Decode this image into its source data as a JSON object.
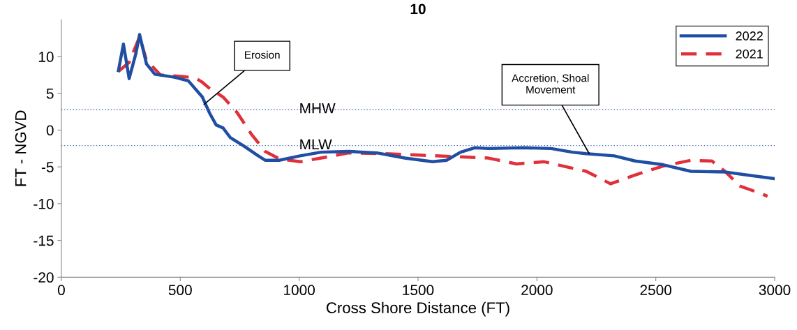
{
  "chart_data": {
    "type": "line",
    "title": "10",
    "xlabel": "Cross Shore Distance (FT)",
    "ylabel": "FT - NGVD",
    "xlim": [
      0,
      3000
    ],
    "xticks": [
      0,
      500,
      1000,
      1500,
      2000,
      2500,
      3000
    ],
    "ylim": [
      -20,
      15
    ],
    "yticks": [
      -20,
      -15,
      -10,
      -5,
      0,
      5,
      10
    ],
    "grid": false,
    "legend": "top right",
    "marker": "none",
    "series": [
      {
        "name": "2022",
        "color": "#1f4ea3",
        "line_style": "solid",
        "x": [
          240,
          261,
          285,
          314,
          329,
          358,
          393,
          475,
          534,
          593,
          622,
          651,
          680,
          710,
          769,
          828,
          857,
          916,
          1004,
          1092,
          1209,
          1327,
          1444,
          1561,
          1620,
          1679,
          1738,
          1796,
          1943,
          2060,
          2149,
          2207,
          2325,
          2413,
          2530,
          2647,
          2794,
          2882,
          3000
        ],
        "values": [
          8.1,
          11.7,
          7.0,
          10.5,
          13.0,
          9.0,
          7.6,
          7.2,
          6.7,
          4.5,
          2.4,
          0.7,
          0.3,
          -1.0,
          -2.2,
          -3.5,
          -4.1,
          -4.1,
          -3.5,
          -3.0,
          -2.9,
          -3.1,
          -3.8,
          -4.3,
          -4.1,
          -3.0,
          -2.4,
          -2.5,
          -2.4,
          -2.5,
          -3.0,
          -3.2,
          -3.5,
          -4.2,
          -4.7,
          -5.6,
          -5.7,
          -6.1,
          -6.6
        ]
      },
      {
        "name": "2021",
        "color": "#e0303a",
        "line_style": "dashed",
        "x": [
          240,
          285,
          329,
          358,
          417,
          505,
          563,
          593,
          622,
          680,
          739,
          798,
          857,
          916,
          1004,
          1092,
          1209,
          1356,
          1502,
          1650,
          1796,
          1914,
          2031,
          2207,
          2310,
          2413,
          2530,
          2647,
          2736,
          2794,
          2853,
          2941,
          2970
        ],
        "values": [
          8.0,
          9.2,
          12.7,
          9.5,
          7.5,
          7.3,
          7.1,
          6.5,
          5.7,
          4.5,
          2.4,
          -0.5,
          -2.9,
          -3.9,
          -4.3,
          -3.8,
          -3.1,
          -3.2,
          -3.4,
          -3.6,
          -3.8,
          -4.6,
          -4.3,
          -5.6,
          -7.3,
          -6.1,
          -4.9,
          -4.1,
          -4.2,
          -5.7,
          -7.6,
          -8.6,
          -9.0
        ]
      }
    ],
    "ref_lines": [
      {
        "axis": "y",
        "value": 2.8,
        "label": "MHW",
        "color": "#4a6fb5",
        "line_style": "dotted"
      },
      {
        "axis": "y",
        "value": -2.1,
        "label": "MLW",
        "color": "#4a6fb5",
        "line_style": "dotted"
      }
    ],
    "annotations": [
      {
        "text": "Erosion",
        "x": 600,
        "y": 3.5
      },
      {
        "text": "Accretion, Shoal\nMovement",
        "x": 2220,
        "y": -3.2
      }
    ]
  }
}
